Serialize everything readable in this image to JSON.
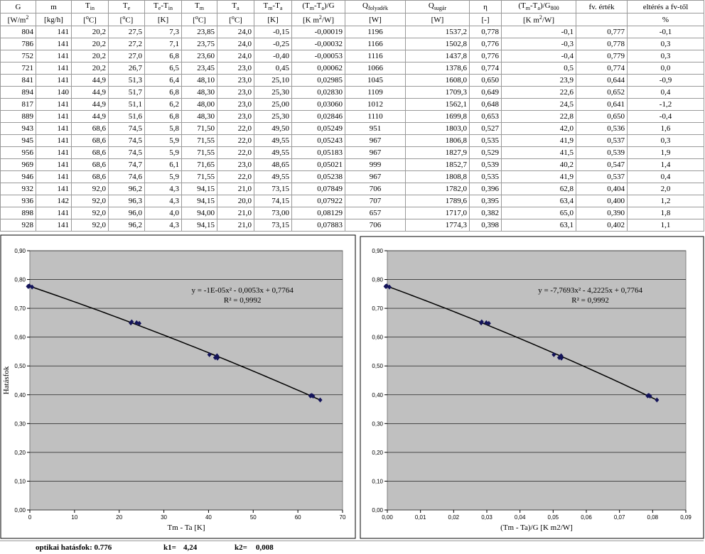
{
  "table": {
    "header": [
      [
        [
          {
            "text": "G"
          }
        ],
        [
          {
            "text": "m"
          }
        ],
        [
          {
            "text": "T"
          },
          {
            "sub": "in"
          }
        ],
        [
          {
            "text": "T"
          },
          {
            "sub": "e"
          }
        ],
        [
          {
            "text": "T"
          },
          {
            "sub": "e"
          },
          {
            "text": "-T"
          },
          {
            "sub": "in"
          }
        ],
        [
          {
            "text": "T"
          },
          {
            "sub": "m"
          }
        ],
        [
          {
            "text": "T"
          },
          {
            "sub": "a"
          }
        ],
        [
          {
            "text": "T"
          },
          {
            "sub": "m"
          },
          {
            "text": "-T"
          },
          {
            "sub": "a"
          }
        ],
        [
          {
            "text": "(T"
          },
          {
            "sub": "m"
          },
          {
            "text": "-T"
          },
          {
            "sub": "a"
          },
          {
            "text": ")/G"
          }
        ],
        [
          {
            "text": "Q"
          },
          {
            "sub": "folyadék"
          }
        ],
        [
          {
            "text": "Q"
          },
          {
            "sub": "sugár"
          }
        ],
        [
          {
            "text": "η"
          }
        ],
        [
          {
            "text": "(T"
          },
          {
            "sub": "m"
          },
          {
            "text": "-T"
          },
          {
            "sub": "a"
          },
          {
            "text": ")/G"
          },
          {
            "sub": "800"
          }
        ],
        [
          {
            "text": "fv. érték"
          }
        ],
        [
          {
            "text": "eltérés a fv-től"
          }
        ]
      ],
      [
        [
          {
            "text": "[W/m"
          },
          {
            "sup": "2"
          }
        ],
        [
          {
            "text": "[kg/h]"
          }
        ],
        [
          {
            "text": "["
          },
          {
            "sup": "o"
          },
          {
            "text": "C]"
          }
        ],
        [
          {
            "text": "["
          },
          {
            "sup": "o"
          },
          {
            "text": "C]"
          }
        ],
        [
          {
            "text": "[K]"
          }
        ],
        [
          {
            "text": "["
          },
          {
            "sup": "o"
          },
          {
            "text": "C]"
          }
        ],
        [
          {
            "text": "["
          },
          {
            "sup": "o"
          },
          {
            "text": "C]"
          }
        ],
        [
          {
            "text": "[K]"
          }
        ],
        [
          {
            "text": "[K m"
          },
          {
            "sup": "2"
          },
          {
            "text": "/W]"
          }
        ],
        [
          {
            "text": "[W]"
          }
        ],
        [
          {
            "text": "[W]"
          }
        ],
        [
          {
            "text": "[-]"
          }
        ],
        [
          {
            "text": "[K m"
          },
          {
            "sup": "2"
          },
          {
            "text": "/W]"
          }
        ],
        null,
        [
          {
            "text": "%"
          }
        ]
      ]
    ],
    "rows": [
      [
        "804",
        "141",
        "20,2",
        "27,5",
        "7,3",
        "23,85",
        "24,0",
        "-0,15",
        "-0,00019",
        "1196",
        "1537,2",
        "0,778",
        "-0,1",
        "0,777",
        "-0,1"
      ],
      [
        "786",
        "141",
        "20,2",
        "27,2",
        "7,1",
        "23,75",
        "24,0",
        "-0,25",
        "-0,00032",
        "1166",
        "1502,8",
        "0,776",
        "-0,3",
        "0,778",
        "0,3"
      ],
      [
        "752",
        "141",
        "20,2",
        "27,0",
        "6,8",
        "23,60",
        "24,0",
        "-0,40",
        "-0,00053",
        "1116",
        "1437,8",
        "0,776",
        "-0,4",
        "0,779",
        "0,3"
      ],
      [
        "721",
        "141",
        "20,2",
        "26,7",
        "6,5",
        "23,45",
        "23,0",
        "0,45",
        "0,00062",
        "1066",
        "1378,6",
        "0,774",
        "0,5",
        "0,774",
        "0,0"
      ],
      [
        "841",
        "141",
        "44,9",
        "51,3",
        "6,4",
        "48,10",
        "23,0",
        "25,10",
        "0,02985",
        "1045",
        "1608,0",
        "0,650",
        "23,9",
        "0,644",
        "-0,9"
      ],
      [
        "894",
        "140",
        "44,9",
        "51,7",
        "6,8",
        "48,30",
        "23,0",
        "25,30",
        "0,02830",
        "1109",
        "1709,3",
        "0,649",
        "22,6",
        "0,652",
        "0,4"
      ],
      [
        "817",
        "141",
        "44,9",
        "51,1",
        "6,2",
        "48,00",
        "23,0",
        "25,00",
        "0,03060",
        "1012",
        "1562,1",
        "0,648",
        "24,5",
        "0,641",
        "-1,2"
      ],
      [
        "889",
        "141",
        "44,9",
        "51,6",
        "6,8",
        "48,30",
        "23,0",
        "25,30",
        "0,02846",
        "1110",
        "1699,8",
        "0,653",
        "22,8",
        "0,650",
        "-0,4"
      ],
      [
        "943",
        "141",
        "68,6",
        "74,5",
        "5,8",
        "71,50",
        "22,0",
        "49,50",
        "0,05249",
        "951",
        "1803,0",
        "0,527",
        "42,0",
        "0,536",
        "1,6"
      ],
      [
        "945",
        "141",
        "68,6",
        "74,5",
        "5,9",
        "71,55",
        "22,0",
        "49,55",
        "0,05243",
        "967",
        "1806,8",
        "0,535",
        "41,9",
        "0,537",
        "0,3"
      ],
      [
        "956",
        "141",
        "68,6",
        "74,5",
        "5,9",
        "71,55",
        "22,0",
        "49,55",
        "0,05183",
        "967",
        "1827,9",
        "0,529",
        "41,5",
        "0,539",
        "1,9"
      ],
      [
        "969",
        "141",
        "68,6",
        "74,7",
        "6,1",
        "71,65",
        "23,0",
        "48,65",
        "0,05021",
        "999",
        "1852,7",
        "0,539",
        "40,2",
        "0,547",
        "1,4"
      ],
      [
        "946",
        "141",
        "68,6",
        "74,6",
        "5,9",
        "71,55",
        "22,0",
        "49,55",
        "0,05238",
        "967",
        "1808,8",
        "0,535",
        "41,9",
        "0,537",
        "0,4"
      ],
      [
        "932",
        "141",
        "92,0",
        "96,2",
        "4,3",
        "94,15",
        "21,0",
        "73,15",
        "0,07849",
        "706",
        "1782,0",
        "0,396",
        "62,8",
        "0,404",
        "2,0"
      ],
      [
        "936",
        "142",
        "92,0",
        "96,3",
        "4,3",
        "94,15",
        "20,0",
        "74,15",
        "0,07922",
        "707",
        "1789,6",
        "0,395",
        "63,4",
        "0,400",
        "1,2"
      ],
      [
        "898",
        "141",
        "92,0",
        "96,0",
        "4,0",
        "94,00",
        "21,0",
        "73,00",
        "0,08129",
        "657",
        "1717,0",
        "0,382",
        "65,0",
        "0,390",
        "1,8"
      ],
      [
        "928",
        "141",
        "92,0",
        "96,2",
        "4,3",
        "94,15",
        "21,0",
        "73,15",
        "0,07883",
        "706",
        "1774,3",
        "0,398",
        "63,1",
        "0,402",
        "1,1"
      ]
    ]
  },
  "chart_data": [
    {
      "type": "scatter",
      "ylabel": "Hatásfok",
      "xlabel": "Tm - Ta [K]",
      "equation": "y = -1E-05x² - 0,0053x + 0,7764",
      "r2": "R² = 0,9992",
      "color": "#14145a",
      "grid": true,
      "trendline": true,
      "xlim": [
        0,
        70
      ],
      "xticks": [
        0,
        10,
        20,
        30,
        40,
        50,
        60,
        70
      ],
      "ylim": [
        0,
        0.9
      ],
      "yticks": [
        {
          "value": 0,
          "label": "0,00"
        },
        {
          "value": 0.1,
          "label": "0,10"
        },
        {
          "value": 0.2,
          "label": "0,20"
        },
        {
          "value": 0.3,
          "label": "0,30"
        },
        {
          "value": 0.4,
          "label": "0,40"
        },
        {
          "value": 0.5,
          "label": "0,50"
        },
        {
          "value": 0.6,
          "label": "0,60"
        },
        {
          "value": 0.7,
          "label": "0,70"
        },
        {
          "value": 0.8,
          "label": "0,80"
        },
        {
          "value": 0.9,
          "label": "0,90"
        }
      ],
      "x": [
        -0.1,
        -0.3,
        -0.4,
        0.5,
        23.9,
        22.6,
        24.5,
        22.8,
        42.0,
        41.9,
        41.5,
        40.2,
        41.9,
        62.8,
        63.4,
        65.0,
        63.1
      ],
      "values": [
        0.778,
        0.776,
        0.776,
        0.774,
        0.65,
        0.649,
        0.648,
        0.653,
        0.527,
        0.535,
        0.529,
        0.539,
        0.535,
        0.396,
        0.395,
        0.382,
        0.398
      ]
    },
    {
      "type": "scatter",
      "xlabel": "(Tm - Ta)/G [K m2/W]",
      "equation": "y = -7,7693x² - 4,2225x + 0,7764",
      "r2": "R² = 0,9992",
      "color": "#14145a",
      "grid": true,
      "trendline": true,
      "xlim": [
        0,
        0.09
      ],
      "xticks": [
        {
          "value": 0,
          "label": "0,00"
        },
        {
          "value": 0.01,
          "label": "0,01"
        },
        {
          "value": 0.02,
          "label": "0,02"
        },
        {
          "value": 0.03,
          "label": "0,03"
        },
        {
          "value": 0.04,
          "label": "0,04"
        },
        {
          "value": 0.05,
          "label": "0,05"
        },
        {
          "value": 0.06,
          "label": "0,06"
        },
        {
          "value": 0.07,
          "label": "0,07"
        },
        {
          "value": 0.08,
          "label": "0,08"
        },
        {
          "value": 0.09,
          "label": "0,09"
        }
      ],
      "ylim": [
        0,
        0.9
      ],
      "yticks": [
        {
          "value": 0,
          "label": "0,00"
        },
        {
          "value": 0.1,
          "label": "0,10"
        },
        {
          "value": 0.2,
          "label": "0,20"
        },
        {
          "value": 0.3,
          "label": "0,30"
        },
        {
          "value": 0.4,
          "label": "0,40"
        },
        {
          "value": 0.5,
          "label": "0,50"
        },
        {
          "value": 0.6,
          "label": "0,60"
        },
        {
          "value": 0.7,
          "label": "0,70"
        },
        {
          "value": 0.8,
          "label": "0,80"
        },
        {
          "value": 0.9,
          "label": "0,90"
        }
      ],
      "x": [
        -0.00019,
        -0.00032,
        -0.00053,
        0.00062,
        0.02985,
        0.0283,
        0.0306,
        0.02846,
        0.05249,
        0.05243,
        0.05183,
        0.05021,
        0.05238,
        0.07849,
        0.07922,
        0.08129,
        0.07883
      ],
      "values": [
        0.778,
        0.776,
        0.776,
        0.774,
        0.65,
        0.649,
        0.648,
        0.653,
        0.527,
        0.535,
        0.529,
        0.539,
        0.535,
        0.396,
        0.395,
        0.382,
        0.398
      ]
    }
  ],
  "footer": {
    "optical": "optikai hatásfok: 0.776",
    "k1_label": "k1=",
    "k1": "4,24",
    "k2_label": "k2=",
    "k2": "0,008"
  }
}
